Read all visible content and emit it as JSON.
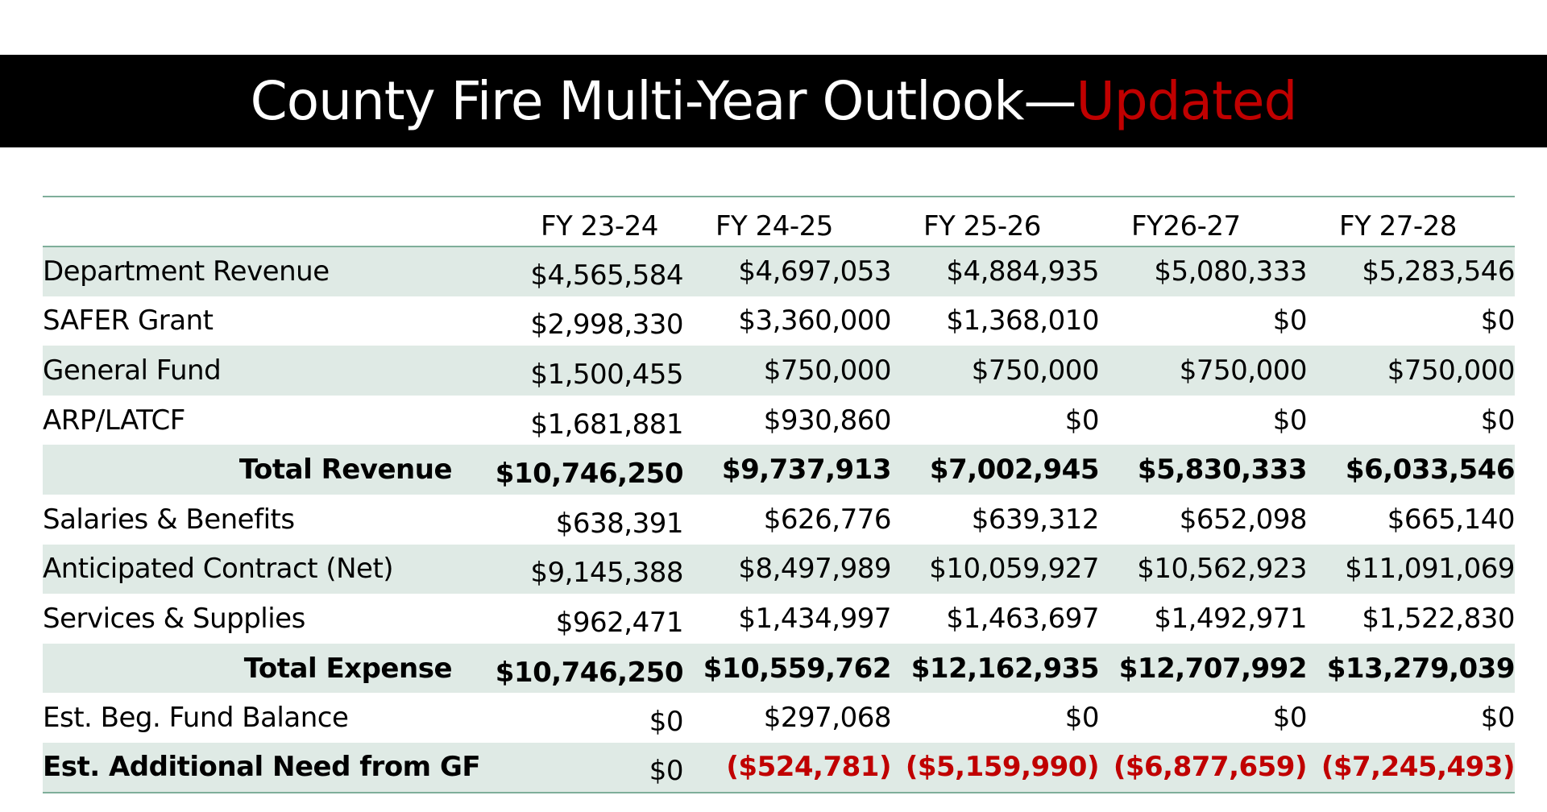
{
  "title": {
    "main": "County Fire Multi-Year Outlook—",
    "accent": "Updated",
    "accent_color": "#c00000"
  },
  "table": {
    "columns": [
      "FY 23-24",
      "FY 24-25",
      "FY 25-26",
      "FY26-27",
      "FY 27-28"
    ],
    "rows": [
      {
        "label": "Department Revenue",
        "values": [
          "$4,565,584",
          "$4,697,053",
          "$4,884,935",
          "$5,080,333",
          "$5,283,546"
        ]
      },
      {
        "label": "SAFER Grant",
        "values": [
          "$2,998,330",
          "$3,360,000",
          "$1,368,010",
          "$0",
          "$0"
        ]
      },
      {
        "label": "General Fund",
        "values": [
          "$1,500,455",
          "$750,000",
          "$750,000",
          "$750,000",
          "$750,000"
        ]
      },
      {
        "label": "ARP/LATCF",
        "values": [
          "$1,681,881",
          "$930,860",
          "$0",
          "$0",
          "$0"
        ]
      },
      {
        "label": "Total Revenue",
        "values": [
          "$10,746,250",
          "$9,737,913",
          "$7,002,945",
          "$5,830,333",
          "$6,033,546"
        ]
      },
      {
        "label": "Salaries & Benefits",
        "values": [
          "$638,391",
          "$626,776",
          "$639,312",
          "$652,098",
          "$665,140"
        ]
      },
      {
        "label": "Anticipated Contract (Net)",
        "values": [
          "$9,145,388",
          "$8,497,989",
          "$10,059,927",
          "$10,562,923",
          "$11,091,069"
        ]
      },
      {
        "label": "Services & Supplies",
        "values": [
          "$962,471",
          "$1,434,997",
          "$1,463,697",
          "$1,492,971",
          "$1,522,830"
        ]
      },
      {
        "label": "Total Expense",
        "values": [
          "$10,746,250",
          "$10,559,762",
          "$12,162,935",
          "$12,707,992",
          "$13,279,039"
        ]
      },
      {
        "label": "Est. Beg. Fund Balance",
        "values": [
          "$0",
          "$297,068",
          "$0",
          "$0",
          "$0"
        ]
      },
      {
        "label": "Est. Additional Need from GF",
        "values": [
          "$0",
          "($524,781)",
          "($5,159,990)",
          "($6,877,659)",
          "($7,245,493)"
        ]
      }
    ],
    "colors": {
      "shade": "#dfeae5",
      "rule": "#7fae9a",
      "negative": "#c00000"
    }
  }
}
